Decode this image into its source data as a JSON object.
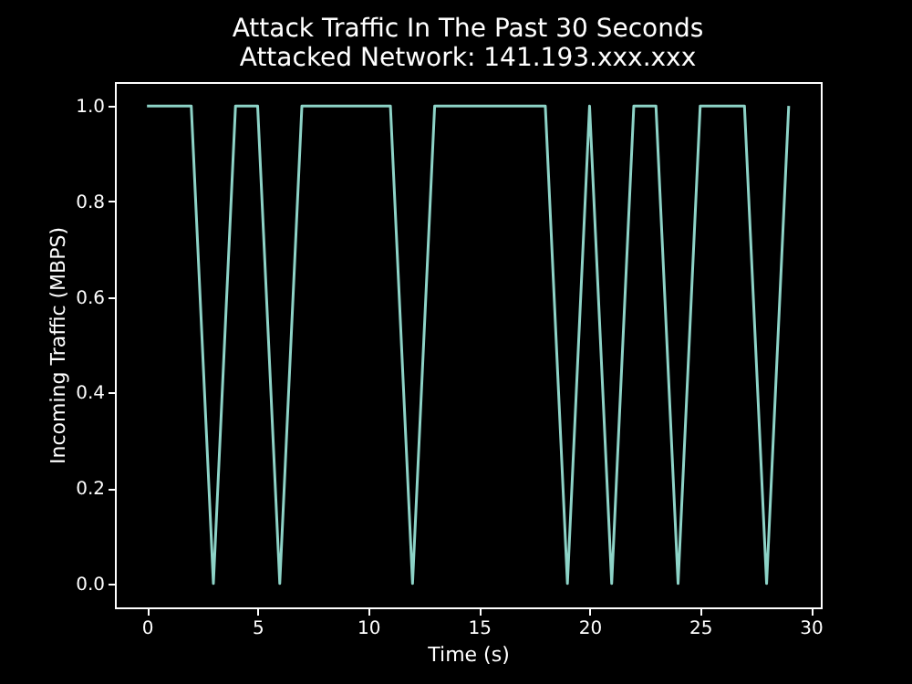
{
  "chart_data": {
    "type": "line",
    "title": "Attack Traffic In The Past 30 Seconds",
    "subtitle": "Attacked Network: 141.193.xxx.xxx",
    "xlabel": "Time (s)",
    "ylabel": "Incoming Traffic (MBPS)",
    "x": [
      0,
      1,
      2,
      3,
      4,
      5,
      6,
      7,
      8,
      9,
      10,
      11,
      12,
      13,
      14,
      15,
      16,
      17,
      18,
      19,
      20,
      21,
      22,
      23,
      24,
      25,
      26,
      27,
      28,
      29
    ],
    "series": [
      {
        "color": "#8dd3c7",
        "values": [
          1,
          1,
          1,
          0,
          1,
          1,
          0,
          1,
          1,
          1,
          1,
          1,
          0,
          1,
          1,
          1,
          1,
          1,
          1,
          0,
          1,
          0,
          1,
          1,
          0,
          1,
          1,
          1,
          0,
          1
        ]
      }
    ],
    "xlim": [
      -1.45,
      30.45
    ],
    "ylim": [
      -0.05,
      1.05
    ],
    "xticks": [
      0,
      5,
      10,
      15,
      20,
      25,
      30
    ],
    "yticks": [
      {
        "value": 0,
        "label": "0.0"
      },
      {
        "value": 0.2,
        "label": "0.2"
      },
      {
        "value": 0.4,
        "label": "0.4"
      },
      {
        "value": 0.6,
        "label": "0.6"
      },
      {
        "value": 0.8,
        "label": "0.8"
      },
      {
        "value": 1,
        "label": "1.0"
      }
    ],
    "grid": false,
    "marker": "none",
    "line_style": "solid"
  }
}
